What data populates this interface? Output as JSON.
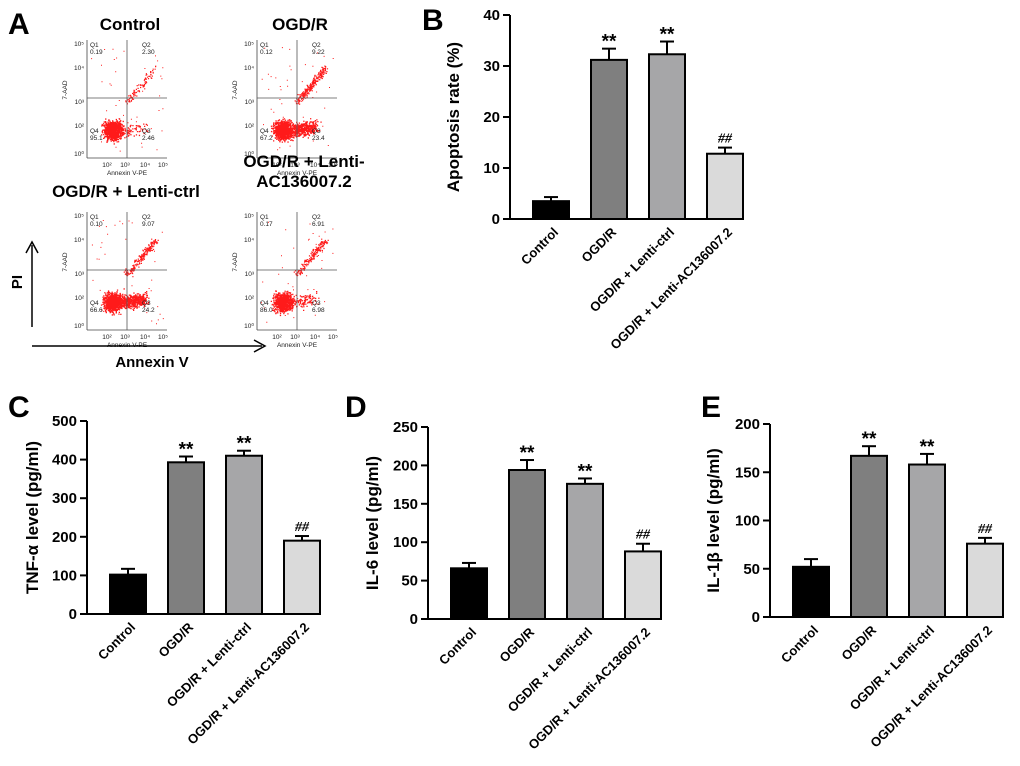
{
  "flow": {
    "label": "A",
    "x_axis_arrow_label": "Annexin V",
    "y_axis_arrow_label": "PI",
    "channel_x": "Annexin V-PE",
    "channel_y": "7-AAD",
    "quadrant_names": [
      "Q1",
      "Q2",
      "Q3",
      "Q4"
    ],
    "ticks": [
      "10⁰",
      "10²",
      "10³",
      "10⁴",
      "10⁵"
    ],
    "plots": [
      {
        "title": [
          "Control"
        ],
        "q1": "0.19",
        "q2": "2.30",
        "q3": "2.46",
        "q4": "95.1"
      },
      {
        "title": [
          "OGD/R"
        ],
        "q1": "0.12",
        "q2": "9.22",
        "q3": "23.4",
        "q4": "67.2"
      },
      {
        "title": [
          "OGD/R + Lenti-ctrl"
        ],
        "q1": "0.10",
        "q2": "9.07",
        "q3": "24.2",
        "q4": "66.6"
      },
      {
        "title": [
          "OGD/R + Lenti-",
          "AC136007.2"
        ],
        "q1": "0.17",
        "q2": "6.91",
        "q3": "6.98",
        "q4": "86.0"
      }
    ]
  },
  "chart_data": [
    {
      "panel": "B",
      "type": "bar",
      "categories": [
        "Control",
        "OGD/R",
        "OGD/R + Lenti-ctrl",
        "OGD/R + Lenti-AC136007.2"
      ],
      "values": [
        3.5,
        31.2,
        32.3,
        12.8
      ],
      "errors": [
        0.8,
        2.2,
        2.5,
        1.2
      ],
      "annotations": [
        "",
        "**",
        "**",
        "##"
      ],
      "colors": [
        "#000000",
        "#7f7f7f",
        "#a6a6a8",
        "#dadada"
      ],
      "ylabel": "Apoptosis rate (%)",
      "ylim": [
        0,
        40
      ],
      "yticks": [
        0,
        10,
        20,
        30,
        40
      ]
    },
    {
      "panel": "C",
      "type": "bar",
      "categories": [
        "Control",
        "OGD/R",
        "OGD/R + Lenti-ctrl",
        "OGD/R + Lenti-AC136007.2"
      ],
      "values": [
        102,
        393,
        410,
        190
      ],
      "errors": [
        15,
        15,
        13,
        12
      ],
      "annotations": [
        "",
        "**",
        "**",
        "##"
      ],
      "colors": [
        "#000000",
        "#7f7f7f",
        "#a6a6a8",
        "#dadada"
      ],
      "ylabel": "TNF-α level (pg/ml)",
      "ylim": [
        0,
        500
      ],
      "yticks": [
        0,
        100,
        200,
        300,
        400,
        500
      ]
    },
    {
      "panel": "D",
      "type": "bar",
      "categories": [
        "Control",
        "OGD/R",
        "OGD/R + Lenti-ctrl",
        "OGD/R + Lenti-AC136007.2"
      ],
      "values": [
        66,
        194,
        176,
        88
      ],
      "errors": [
        7,
        13,
        7,
        10
      ],
      "annotations": [
        "",
        "**",
        "**",
        "##"
      ],
      "colors": [
        "#000000",
        "#7f7f7f",
        "#a6a6a8",
        "#dadada"
      ],
      "ylabel": "IL-6 level (pg/ml)",
      "ylim": [
        0,
        250
      ],
      "yticks": [
        0,
        50,
        100,
        150,
        200,
        250
      ]
    },
    {
      "panel": "E",
      "type": "bar",
      "categories": [
        "Control",
        "OGD/R",
        "OGD/R + Lenti-ctrl",
        "OGD/R + Lenti-AC136007.2"
      ],
      "values": [
        52,
        167,
        158,
        76
      ],
      "errors": [
        8,
        10,
        11,
        6
      ],
      "annotations": [
        "",
        "**",
        "**",
        "##"
      ],
      "colors": [
        "#000000",
        "#7f7f7f",
        "#a6a6a8",
        "#dadada"
      ],
      "ylabel": "IL-1β level (pg/ml)",
      "ylim": [
        0,
        200
      ],
      "yticks": [
        0,
        50,
        100,
        150,
        200
      ]
    }
  ]
}
